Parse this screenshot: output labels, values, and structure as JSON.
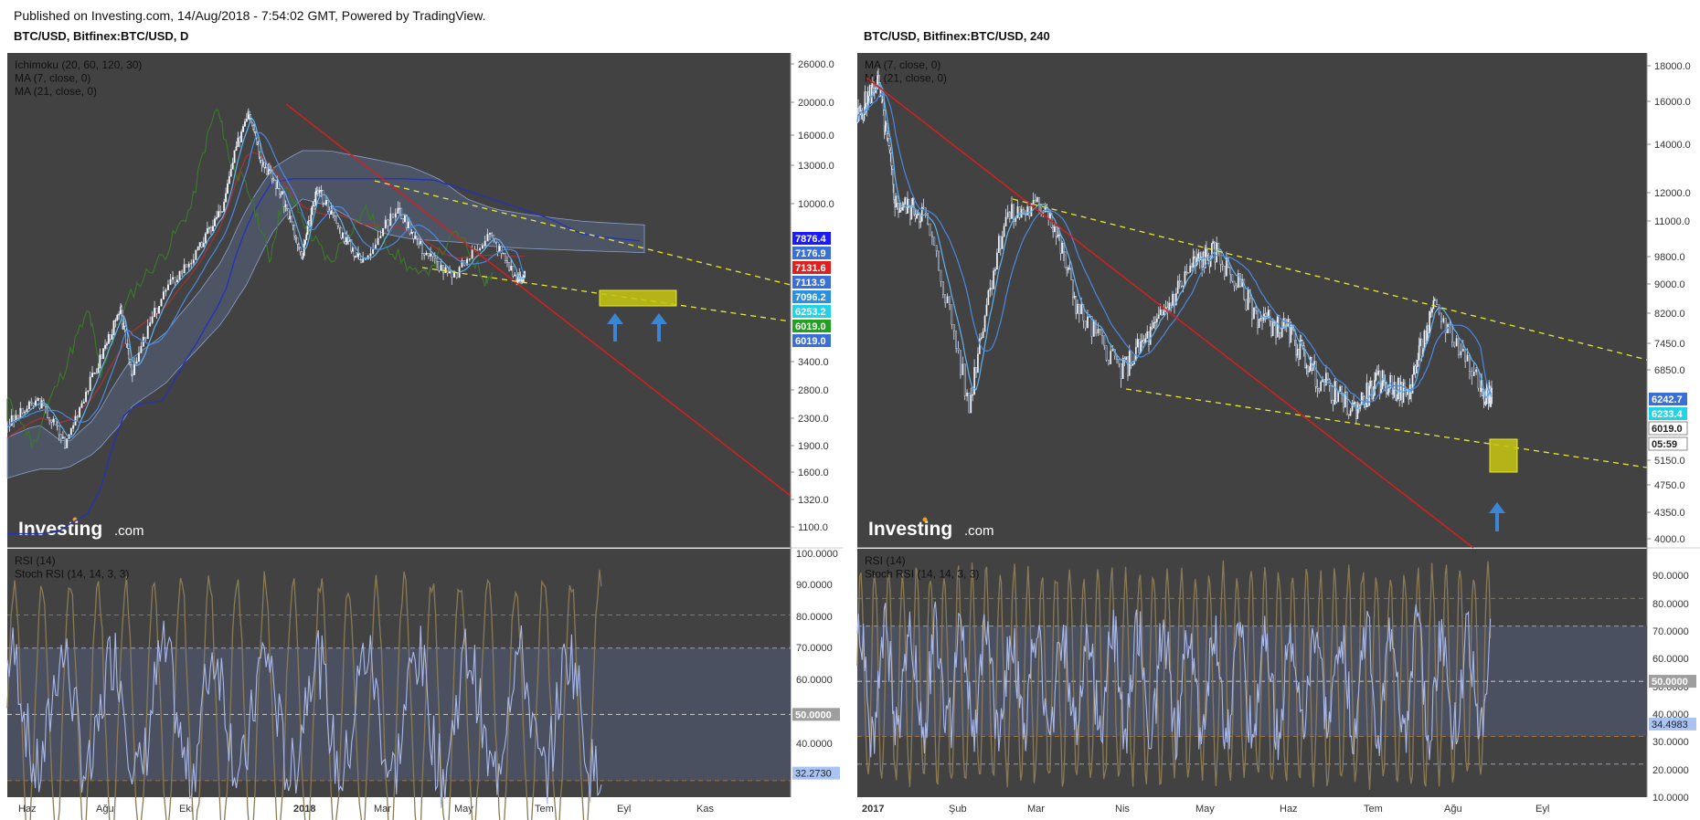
{
  "header": {
    "published": "Published on Investing.com, 14/Aug/2018 - 7:54:02 GMT, Powered by TradingView."
  },
  "panels": [
    {
      "title": "BTC/USD, Bitfinex:BTC/USD, D",
      "indicators": [
        "Ichimoku (20, 60, 120, 30)",
        "MA (7, close, 0)",
        "MA (21, close, 0)"
      ],
      "sub_indicators": [
        "RSI (14)",
        "Stoch RSI (14, 14, 3, 3)"
      ],
      "logo": "Investing",
      "logo_suffix": ".com"
    },
    {
      "title": "BTC/USD, Bitfinex:BTC/USD, 240",
      "indicators": [
        "MA (7, close, 0)",
        "MA (21, close, 0)"
      ],
      "sub_indicators": [
        "RSI (14)",
        "Stoch RSI (14, 14, 3, 3)"
      ],
      "logo": "Investing",
      "logo_suffix": ".com"
    }
  ],
  "chart_data": [
    {
      "type": "line",
      "title": "BTC/USD, Bitfinex:BTC/USD, D",
      "scale": "log",
      "ylim": [
        1000,
        28000
      ],
      "y_ticks": [
        "26000.0",
        "20000.0",
        "16000.0",
        "13000.0",
        "10000.0",
        "3400.0",
        "2800.0",
        "2300.0",
        "1900.0",
        "1600.0",
        "1320.0",
        "1100.0"
      ],
      "x_ticks": [
        "Haz",
        "Ağu",
        "Eki",
        "2018",
        "Mar",
        "May",
        "Tem",
        "Eyl",
        "Kas"
      ],
      "price_labels": [
        {
          "text": "7876.4",
          "color": "#1a1aff"
        },
        {
          "text": "7176.9",
          "color": "#3a6fd8"
        },
        {
          "text": "7131.6",
          "color": "#e02020"
        },
        {
          "text": "7113.9",
          "color": "#3a6fd8"
        },
        {
          "text": "7096.2",
          "color": "#2a90e0"
        },
        {
          "text": "6253.2",
          "color": "#22d3e6"
        },
        {
          "text": "6019.0",
          "color": "#22a020"
        },
        {
          "text": "6019.0",
          "color": "#3a6fd8"
        }
      ],
      "series": [
        {
          "name": "BTC/USD",
          "x": [
            "2017-05-25",
            "2017-06-20",
            "2017-07-16",
            "2017-08-10",
            "2017-09-01",
            "2017-09-15",
            "2017-10-10",
            "2017-11-05",
            "2017-11-28",
            "2017-12-17",
            "2017-12-30",
            "2018-01-16",
            "2018-02-06",
            "2018-02-20",
            "2018-03-20",
            "2018-04-06",
            "2018-05-05",
            "2018-05-29",
            "2018-06-24",
            "2018-07-24",
            "2018-08-10",
            "2018-08-14"
          ],
          "values": [
            2300,
            2700,
            2000,
            3300,
            4900,
            3200,
            5600,
            7300,
            10000,
            19300,
            13500,
            11000,
            6900,
            11200,
            8300,
            6800,
            9800,
            7500,
            6100,
            8300,
            6100,
            6250
          ]
        },
        {
          "name": "Kijun",
          "values": [
            2300,
            2300,
            2300,
            2800,
            4000,
            4000,
            5000,
            6500,
            8500,
            12000,
            12000,
            12000,
            12000,
            12000,
            12000,
            12000,
            10000,
            9500,
            8500,
            8500,
            8000,
            8000
          ]
        }
      ],
      "sub_chart": {
        "name": "RSI (14)",
        "y_ticks": [
          "100.0000",
          "90.0000",
          "80.0000",
          "70.0000",
          "60.0000",
          "50.0000",
          "40.0000",
          "30.0000"
        ],
        "last_value": "32.2730",
        "level_label": "50.0000"
      }
    },
    {
      "type": "line",
      "title": "BTC/USD, Bitfinex:BTC/USD, 240",
      "scale": "log",
      "ylim": [
        3900,
        18500
      ],
      "y_ticks": [
        "18000.0",
        "16000.0",
        "14000.0",
        "12000.0",
        "11000.0",
        "9800.0",
        "9000.0",
        "8200.0",
        "7450.0",
        "6850.0",
        "5150.0",
        "4750.0",
        "4350.0",
        "4000.0"
      ],
      "x_ticks": [
        "2017",
        "Şub",
        "Mar",
        "Nis",
        "May",
        "Haz",
        "Tem",
        "Ağu",
        "Eyl"
      ],
      "price_labels": [
        {
          "text": "6242.7",
          "color": "#3a6fd8"
        },
        {
          "text": "6233.4",
          "color": "#22d3e6"
        },
        {
          "text": "6019.0",
          "color": "#ffffff"
        },
        {
          "text": "05:59",
          "color": "#ffffff"
        }
      ],
      "series": [
        {
          "name": "BTC/USD",
          "x": [
            "2017-12-22",
            "2018-01-06",
            "2018-01-16",
            "2018-01-28",
            "2018-02-06",
            "2018-02-20",
            "2018-03-05",
            "2018-03-18",
            "2018-04-01",
            "2018-04-12",
            "2018-04-25",
            "2018-05-05",
            "2018-05-20",
            "2018-06-03",
            "2018-06-12",
            "2018-06-24",
            "2018-07-04",
            "2018-07-14",
            "2018-07-26",
            "2018-08-08",
            "2018-08-14"
          ],
          "values": [
            15000,
            17000,
            11500,
            11200,
            6000,
            11000,
            11500,
            8200,
            6800,
            7800,
            9500,
            9900,
            8100,
            7700,
            6700,
            6000,
            6600,
            6300,
            8300,
            6500,
            6250
          ]
        }
      ],
      "sub_chart": {
        "name": "RSI (14)",
        "y_ticks": [
          "90.0000",
          "80.0000",
          "70.0000",
          "60.0000",
          "50.0000",
          "40.0000",
          "30.0000",
          "20.0000",
          "10.0000"
        ],
        "last_value": "34.4983",
        "level_label": "50.0000"
      }
    }
  ]
}
